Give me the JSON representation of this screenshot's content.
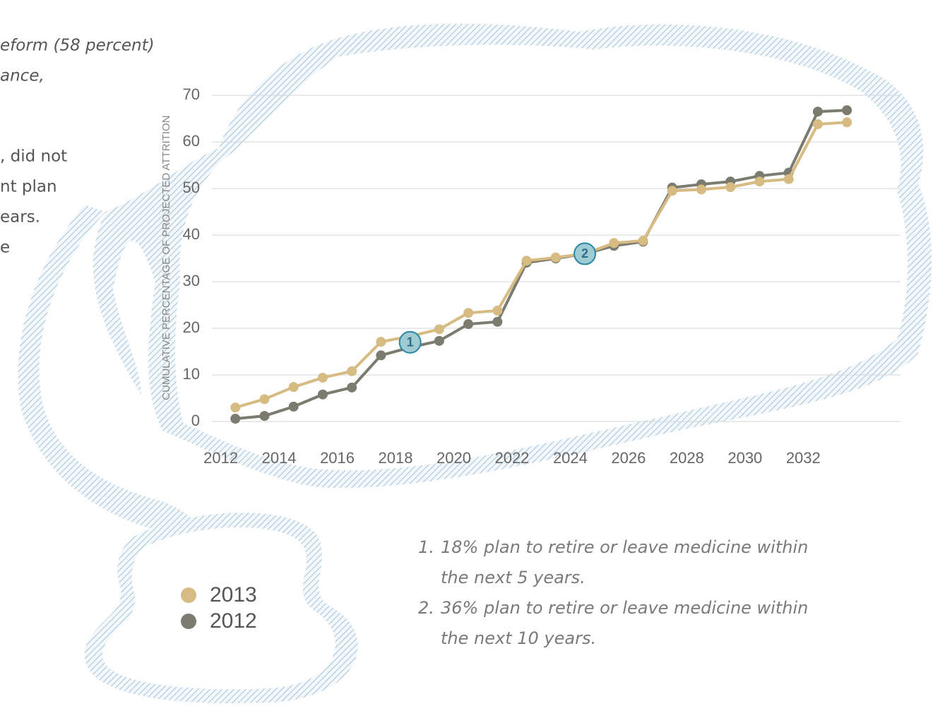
{
  "side_text": [
    "eform (58 percent)",
    "ance,",
    ", did not",
    "nt plan",
    "ears.",
    "e"
  ],
  "chart_data": {
    "type": "line",
    "ylabel": "CUMULATIVE PERCENTAGE OF PROJECTED ATTRITION",
    "x": [
      2012.5,
      2013.5,
      2014.5,
      2015.5,
      2016.5,
      2017.5,
      2018.5,
      2019.5,
      2020.5,
      2021.5,
      2022.5,
      2023.5,
      2024.5,
      2025.5,
      2026.5,
      2027.5,
      2028.5,
      2029.5,
      2030.5,
      2031.5,
      2032.5,
      2033.5
    ],
    "series": [
      {
        "name": "2013",
        "color": "#d6bb82",
        "values": [
          3.0,
          4.8,
          7.4,
          9.4,
          10.8,
          17.1,
          18.3,
          19.8,
          23.3,
          23.8,
          34.5,
          35.2,
          36.0,
          38.3,
          38.8,
          49.5,
          49.8,
          50.3,
          51.5,
          52.0,
          63.8,
          64.2
        ]
      },
      {
        "name": "2012",
        "color": "#7b7b70",
        "values": [
          0.6,
          1.2,
          3.2,
          5.8,
          7.3,
          14.2,
          15.9,
          17.3,
          20.9,
          21.4,
          34.1,
          35.0,
          36.0,
          37.7,
          38.6,
          50.2,
          50.9,
          51.5,
          52.7,
          53.4,
          66.5,
          66.8
        ]
      }
    ],
    "annotations": [
      {
        "label": "1",
        "x": 2018.5,
        "y": 17.0
      },
      {
        "label": "2",
        "x": 2024.5,
        "y": 36.0
      }
    ],
    "xlim": [
      2011.5,
      2035
    ],
    "xticks": [
      2012,
      2014,
      2016,
      2018,
      2020,
      2022,
      2024,
      2026,
      2028,
      2030,
      2032
    ],
    "ylim": [
      0,
      70
    ],
    "yticks": [
      0,
      10,
      20,
      30,
      40,
      50,
      60,
      70
    ],
    "grid": true
  },
  "footnotes": [
    {
      "marker": "1.",
      "lines": [
        "18% plan to retire or leave medicine within",
        "the next 5 years."
      ]
    },
    {
      "marker": "2.",
      "lines": [
        "36% plan to retire or leave medicine within",
        "the next 10 years."
      ]
    }
  ]
}
